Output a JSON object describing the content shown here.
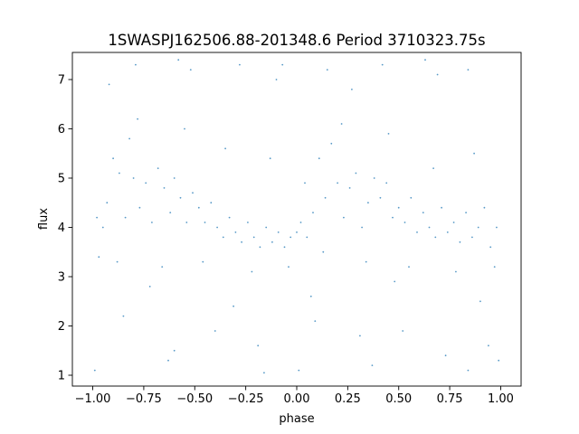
{
  "chart_data": {
    "type": "scatter",
    "title": "1SWASPJ162506.88-201348.6 Period 3710323.75s",
    "xlabel": "phase",
    "ylabel": "flux",
    "xlim": [
      -1.1,
      1.1
    ],
    "ylim": [
      0.78,
      7.55
    ],
    "xticks": [
      -1.0,
      -0.75,
      -0.5,
      -0.25,
      0.0,
      0.25,
      0.5,
      0.75,
      1.0
    ],
    "xtick_labels": [
      "−1.00",
      "−0.75",
      "−0.50",
      "−0.25",
      "0.00",
      "0.25",
      "0.50",
      "0.75",
      "1.00"
    ],
    "yticks": [
      1,
      2,
      3,
      4,
      5,
      6,
      7
    ],
    "ytick_labels": [
      "1",
      "2",
      "3",
      "4",
      "5",
      "6",
      "7"
    ],
    "grid": false,
    "marker_color": "#1f77b4",
    "series": [
      {
        "marker": "dot",
        "x": [
          -0.98,
          -0.95,
          -0.93,
          -0.9,
          -0.87,
          -0.84,
          -0.82,
          -0.8,
          -0.77,
          -0.74,
          -0.71,
          -0.68,
          -0.65,
          -0.62,
          -0.6,
          -0.57,
          -0.54,
          -0.51,
          -0.48,
          -0.45,
          -0.42,
          -0.39,
          -0.36,
          -0.33,
          -0.3,
          -0.27,
          -0.24,
          -0.21,
          -0.18,
          -0.15,
          -0.12,
          -0.09,
          -0.06,
          -0.03,
          0.0,
          0.02,
          0.05,
          0.08,
          0.11,
          0.14,
          0.17,
          0.2,
          0.23,
          0.26,
          0.29,
          0.32,
          0.35,
          0.38,
          0.41,
          0.44,
          0.47,
          0.5,
          0.53,
          0.56,
          0.59,
          0.62,
          0.65,
          0.68,
          0.71,
          0.74,
          0.77,
          0.8,
          0.83,
          0.86,
          0.89,
          0.92,
          0.95,
          0.98,
          -0.97,
          -0.88,
          -0.78,
          -0.66,
          -0.55,
          -0.46,
          -0.35,
          -0.22,
          -0.13,
          -0.04,
          0.04,
          0.13,
          0.22,
          0.34,
          0.45,
          0.55,
          0.67,
          0.78,
          0.87,
          0.97,
          -0.92,
          -0.72,
          -0.52,
          -0.31,
          -0.1,
          0.07,
          0.27,
          0.48,
          0.69,
          0.9,
          -0.85,
          -0.6,
          -0.4,
          -0.19,
          0.09,
          0.31,
          0.52,
          0.73,
          0.94,
          -0.79,
          -0.58,
          -0.28,
          -0.07,
          0.15,
          0.42,
          0.63,
          0.84,
          -0.99,
          -0.63,
          -0.16,
          0.01,
          0.37,
          0.84,
          0.99
        ],
        "y": [
          4.2,
          4.0,
          4.5,
          5.4,
          5.1,
          4.2,
          5.8,
          5.0,
          4.4,
          4.9,
          4.1,
          5.2,
          4.8,
          4.3,
          5.0,
          4.6,
          4.1,
          4.7,
          4.4,
          4.1,
          4.5,
          4.0,
          3.8,
          4.2,
          3.9,
          3.7,
          4.1,
          3.8,
          3.6,
          4.0,
          3.7,
          3.9,
          3.6,
          3.8,
          3.9,
          4.1,
          3.8,
          4.3,
          5.4,
          4.6,
          5.7,
          4.9,
          4.2,
          4.8,
          5.1,
          4.0,
          4.5,
          5.0,
          4.6,
          4.9,
          4.2,
          4.4,
          4.1,
          4.6,
          3.9,
          4.3,
          4.0,
          3.8,
          4.4,
          3.9,
          4.1,
          3.7,
          4.3,
          3.8,
          4.0,
          4.4,
          3.6,
          4.0,
          3.4,
          3.3,
          6.2,
          3.2,
          6.0,
          3.3,
          5.6,
          3.1,
          5.4,
          3.2,
          4.9,
          3.5,
          6.1,
          3.3,
          5.9,
          3.2,
          5.2,
          3.1,
          5.5,
          3.2,
          6.9,
          2.8,
          7.2,
          2.4,
          7.0,
          2.6,
          6.8,
          2.9,
          7.1,
          2.5,
          2.2,
          1.5,
          1.9,
          1.6,
          2.1,
          1.8,
          1.9,
          1.4,
          1.6,
          7.3,
          7.4,
          7.3,
          7.3,
          7.2,
          7.3,
          7.4,
          7.2,
          1.1,
          1.3,
          1.05,
          1.1,
          1.2,
          1.1,
          1.3
        ]
      }
    ]
  }
}
